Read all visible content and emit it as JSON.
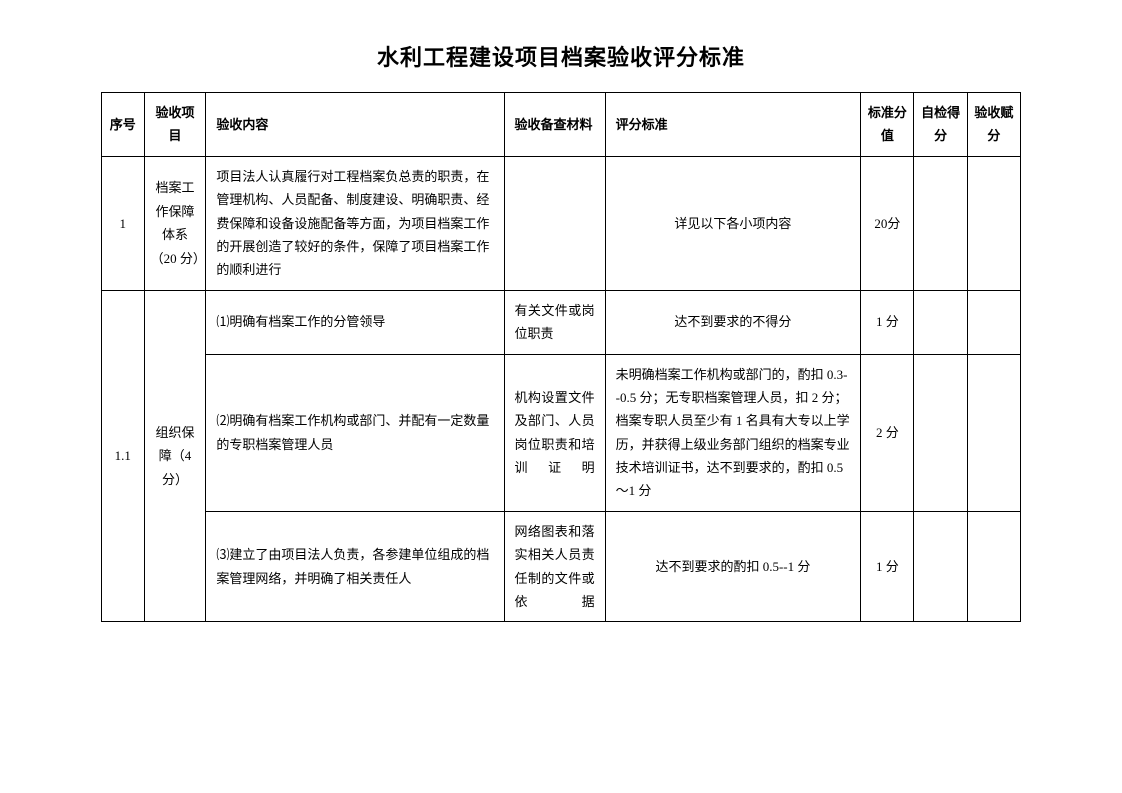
{
  "title": "水利工程建设项目档案验收评分标准",
  "headers": {
    "seq": "序号",
    "item": "验收项目",
    "content": "验收内容",
    "material": "验收备查材料",
    "criteria": "评分标准",
    "score": "标准分值",
    "self": "自检得分",
    "accept": "验收赋分"
  },
  "rows": {
    "r1": {
      "seq": "1",
      "item": "档案工作保障体系（20 分）",
      "content": "项目法人认真履行对工程档案负总责的职责，在管理机构、人员配备、制度建设、明确职责、经费保障和设备设施配备等方面，为项目档案工作的开展创造了较好的条件，保障了项目档案工作的顺利进行",
      "material": "",
      "criteria": "详见以下各小项内容",
      "score": "20分",
      "self": "",
      "accept": ""
    },
    "r1_1": {
      "seq": "1.1",
      "item": "组织保障（4 分）"
    },
    "r1_1_1": {
      "content": "⑴明确有档案工作的分管领导",
      "material": "有关文件或岗位职责",
      "criteria": "达不到要求的不得分",
      "score": "1 分",
      "self": "",
      "accept": ""
    },
    "r1_1_2": {
      "content": "⑵明确有档案工作机构或部门、并配有一定数量的专职档案管理人员",
      "material": "机构设置文件及部门、人员岗位职责和培训证明",
      "criteria": "未明确档案工作机构或部门的，酌扣 0.3--0.5 分；无专职档案管理人员，扣 2 分；档案专职人员至少有 1 名具有大专以上学历，并获得上级业务部门组织的档案专业技术培训证书，达不到要求的，酌扣 0.5～1 分",
      "score": "2 分",
      "self": "",
      "accept": ""
    },
    "r1_1_3": {
      "content": "⑶建立了由项目法人负责，各参建单位组成的档案管理网络，并明确了相关责任人",
      "material": "网络图表和落实相关人员责任制的文件或依据",
      "criteria": "达不到要求的酌扣 0.5--1 分",
      "score": "1 分",
      "self": "",
      "accept": ""
    }
  }
}
